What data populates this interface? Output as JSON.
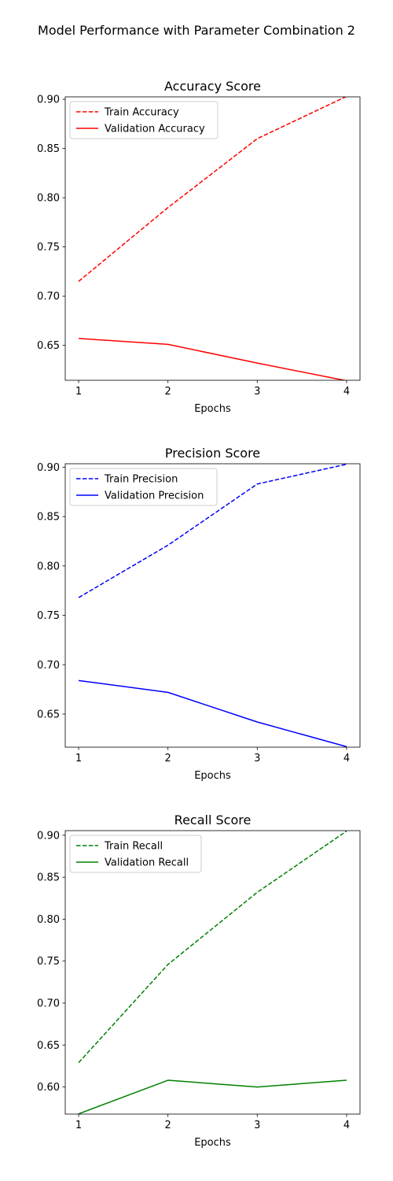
{
  "figure": {
    "suptitle": "Model Performance with Parameter Combination 2"
  },
  "chart_data": [
    {
      "type": "line",
      "title": "Accuracy Score",
      "xlabel": "Epochs",
      "ylabel": "",
      "x": [
        1,
        2,
        3,
        4
      ],
      "xticks": [
        "1",
        "2",
        "3",
        "4"
      ],
      "yticks": [
        "0.65",
        "0.70",
        "0.75",
        "0.80",
        "0.85",
        "0.90"
      ],
      "xlim": [
        0.85,
        4.15
      ],
      "ylim": [
        0.6145,
        0.9025
      ],
      "grid": false,
      "legend_position": "upper-left",
      "series": [
        {
          "name": "Train Accuracy",
          "values": [
            0.715,
            0.79,
            0.86,
            0.903
          ],
          "color": "#ff0000",
          "style": "dashed"
        },
        {
          "name": "Validation Accuracy",
          "values": [
            0.657,
            0.651,
            0.632,
            0.614
          ],
          "color": "#ff0000",
          "style": "solid"
        }
      ]
    },
    {
      "type": "line",
      "title": "Precision Score",
      "xlabel": "Epochs",
      "ylabel": "",
      "x": [
        1,
        2,
        3,
        4
      ],
      "xticks": [
        "1",
        "2",
        "3",
        "4"
      ],
      "yticks": [
        "0.65",
        "0.70",
        "0.75",
        "0.80",
        "0.85",
        "0.90"
      ],
      "xlim": [
        0.85,
        4.15
      ],
      "ylim": [
        0.6165,
        0.9035
      ],
      "grid": false,
      "legend_position": "upper-left",
      "series": [
        {
          "name": "Train Precision",
          "values": [
            0.768,
            0.821,
            0.883,
            0.903
          ],
          "color": "#0000ff",
          "style": "dashed"
        },
        {
          "name": "Validation Precision",
          "values": [
            0.684,
            0.672,
            0.642,
            0.617
          ],
          "color": "#0000ff",
          "style": "solid"
        }
      ]
    },
    {
      "type": "line",
      "title": "Recall Score",
      "xlabel": "Epochs",
      "ylabel": "",
      "x": [
        1,
        2,
        3,
        4
      ],
      "xticks": [
        "1",
        "2",
        "3",
        "4"
      ],
      "yticks": [
        "0.60",
        "0.65",
        "0.70",
        "0.75",
        "0.80",
        "0.85",
        "0.90"
      ],
      "xlim": [
        0.85,
        4.15
      ],
      "ylim": [
        0.5677,
        0.9055
      ],
      "grid": false,
      "legend_position": "upper-left",
      "series": [
        {
          "name": "Train Recall",
          "values": [
            0.629,
            0.746,
            0.832,
            0.905
          ],
          "color": "#008000",
          "style": "dashed"
        },
        {
          "name": "Validation Recall",
          "values": [
            0.568,
            0.608,
            0.6,
            0.608
          ],
          "color": "#008000",
          "style": "solid"
        }
      ]
    }
  ]
}
